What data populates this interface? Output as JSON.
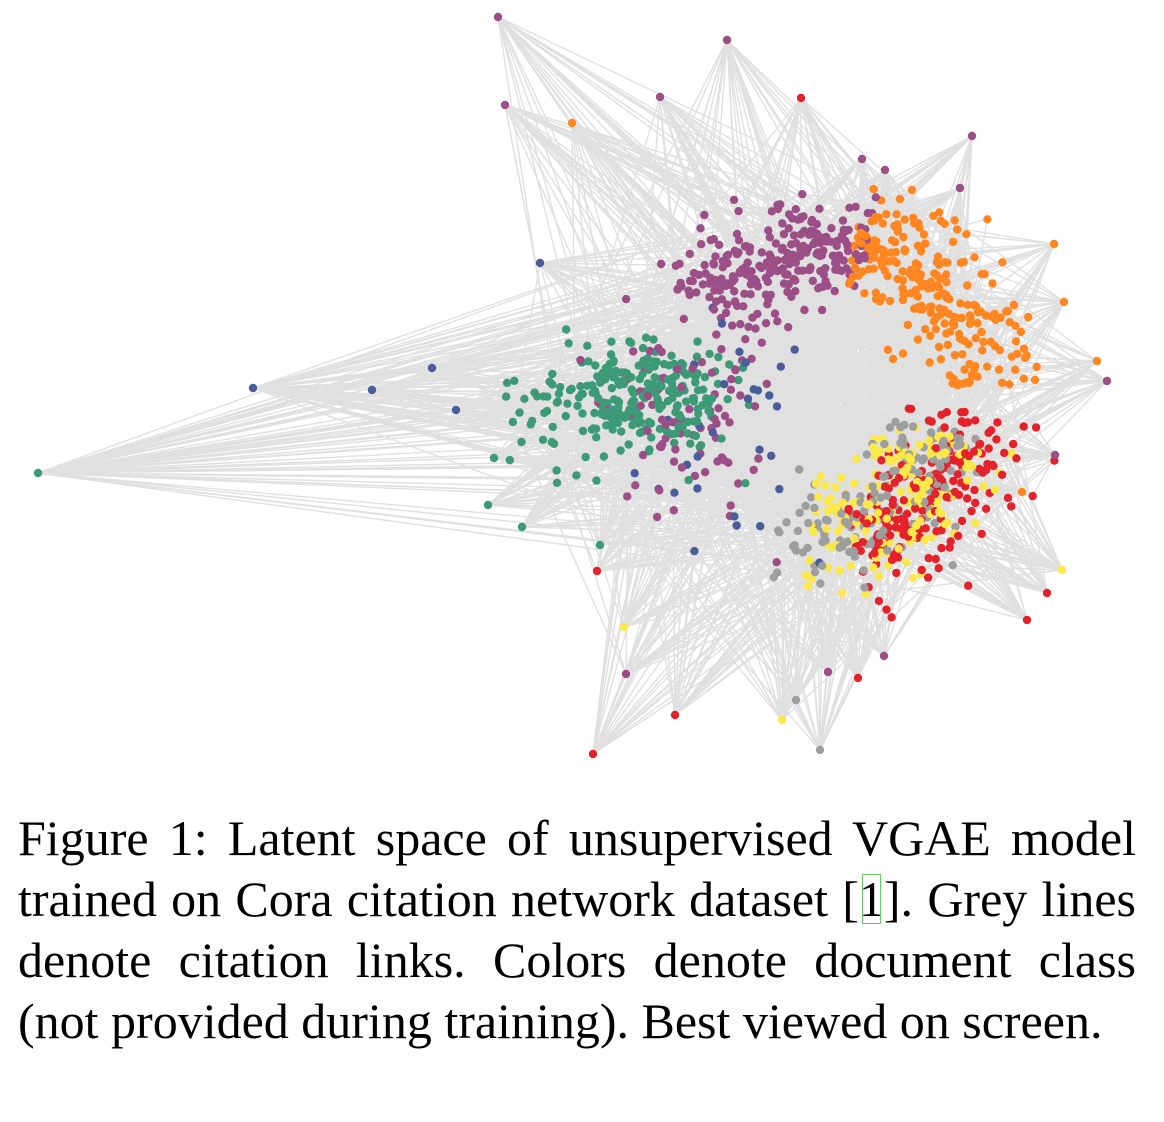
{
  "figure": {
    "edge_color": "#e0e0e0",
    "class_colors": {
      "green": "#3d9a77",
      "purple": "#9c4f86",
      "orange": "#ff8621",
      "red": "#e4222b",
      "yellow": "#fde849",
      "grey": "#9e9e9e",
      "blue": "#4a5d9a"
    }
  },
  "caption": {
    "label": "Figure 1:",
    "text_before_ref": " Latent space of unsupervised VGAE model trained on Cora citation network dataset [",
    "ref": "1",
    "text_after_ref": "]. Grey lines denote citation links. Colors denote document class (not provided during training). Best viewed on screen."
  }
}
